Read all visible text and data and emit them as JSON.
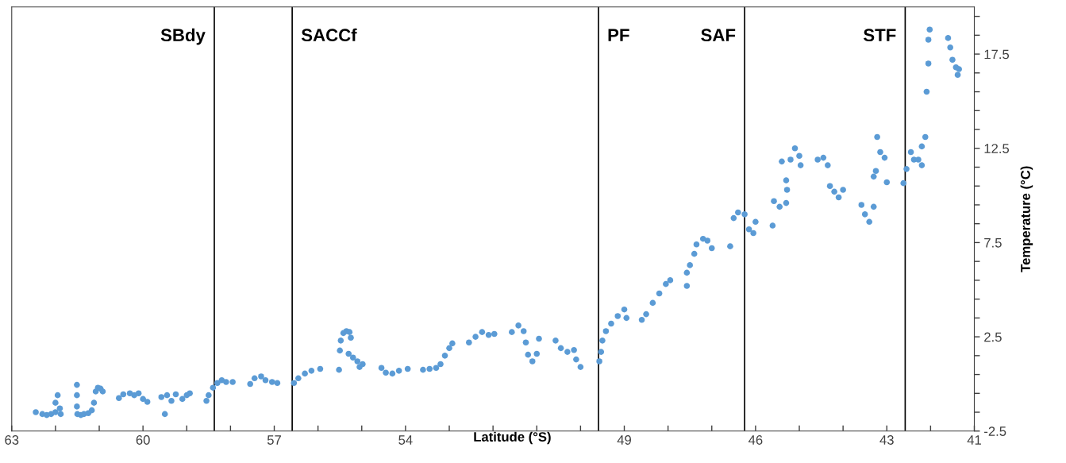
{
  "chart_data": {
    "type": "scatter",
    "xlabel": "Latitude (°S)",
    "ylabel": "Temperature (°C)",
    "xlim": [
      63,
      41
    ],
    "ylim": [
      -2.5,
      20
    ],
    "xticks": [
      63,
      {
        "value": 62,
        "label": null
      },
      {
        "value": 61,
        "label": null
      },
      60,
      {
        "value": 59,
        "label": null
      },
      {
        "value": 58,
        "label": null
      },
      57,
      {
        "value": 56,
        "label": null
      },
      {
        "value": 55,
        "label": null
      },
      54,
      {
        "value": 53,
        "label": null
      },
      {
        "value": 52,
        "label": null
      },
      {
        "value": 51,
        "label": null
      },
      {
        "value": 50,
        "label": null
      },
      49,
      {
        "value": 48,
        "label": null
      },
      {
        "value": 47,
        "label": null
      },
      46,
      {
        "value": 45,
        "label": null
      },
      {
        "value": 44,
        "label": null
      },
      43,
      {
        "value": 42,
        "label": null
      },
      41
    ],
    "yticks": [
      -2.5,
      {
        "value": -1.5,
        "label": null
      },
      {
        "value": -0.5,
        "label": null
      },
      {
        "value": 0.5,
        "label": null
      },
      {
        "value": 1.5,
        "label": null
      },
      2.5,
      {
        "value": 3.5,
        "label": null
      },
      {
        "value": 4.5,
        "label": null
      },
      {
        "value": 5.5,
        "label": null
      },
      {
        "value": 6.5,
        "label": null
      },
      7.5,
      {
        "value": 8.5,
        "label": null
      },
      {
        "value": 9.5,
        "label": null
      },
      {
        "value": 10.5,
        "label": null
      },
      {
        "value": 11.5,
        "label": null
      },
      12.5,
      {
        "value": 13.5,
        "label": null
      },
      {
        "value": 14.5,
        "label": null
      },
      {
        "value": 15.5,
        "label": null
      },
      {
        "value": 16.5,
        "label": null
      },
      17.5,
      {
        "value": 18.5,
        "label": null
      },
      {
        "value": 19.5,
        "label": null
      }
    ],
    "grid": false,
    "marker": "circle",
    "ref_lines": [
      {
        "axis": "x",
        "value": 58.37,
        "label": "SBdy",
        "color": "#000000"
      },
      {
        "axis": "x",
        "value": 56.59,
        "label": "SACCf",
        "color": "#000000"
      },
      {
        "axis": "x",
        "value": 49.59,
        "label": "PF",
        "color": "#000000"
      },
      {
        "axis": "x",
        "value": 46.25,
        "label": "SAF",
        "color": "#000000"
      },
      {
        "axis": "x",
        "value": 42.58,
        "label": "STF",
        "color": "#000000"
      }
    ],
    "series": [
      {
        "color": "#5b9bd5",
        "x": [
          62.45,
          62.3,
          62.2,
          62.1,
          62.0,
          62.0,
          61.95,
          61.9,
          61.88,
          61.51,
          61.51,
          61.51,
          61.5,
          61.42,
          61.35,
          61.25,
          61.17,
          61.12,
          61.08,
          61.03,
          60.97,
          60.92,
          60.55,
          60.45,
          60.3,
          60.2,
          60.1,
          60.0,
          59.9,
          59.58,
          59.5,
          59.45,
          59.35,
          59.25,
          59.1,
          59.0,
          58.93,
          58.55,
          58.5,
          58.4,
          58.3,
          58.2,
          58.1,
          57.95,
          57.55,
          57.45,
          57.3,
          57.2,
          57.05,
          56.93,
          56.55,
          56.45,
          56.3,
          56.15,
          55.95,
          55.52,
          55.5,
          55.48,
          55.42,
          55.35,
          55.28,
          55.25,
          55.3,
          55.2,
          55.1,
          55.05,
          54.98,
          54.55,
          54.45,
          54.3,
          54.15,
          53.95,
          53.6,
          53.45,
          53.3,
          53.2,
          53.1,
          53.0,
          52.93,
          52.55,
          52.4,
          52.25,
          52.1,
          51.97,
          51.57,
          51.42,
          51.3,
          51.25,
          51.2,
          51.1,
          51.0,
          50.95,
          50.57,
          50.45,
          50.3,
          50.15,
          50.1,
          50.0,
          49.57,
          49.53,
          49.5,
          49.42,
          49.3,
          49.15,
          49.0,
          48.95,
          48.6,
          48.5,
          48.35,
          48.2,
          48.05,
          47.95,
          47.57,
          47.57,
          47.5,
          47.4,
          47.35,
          47.2,
          47.1,
          47.0,
          46.58,
          46.5,
          46.4,
          46.25,
          46.15,
          46.05,
          46.0,
          45.61,
          45.58,
          45.45,
          45.3,
          45.28,
          45.3,
          45.4,
          45.2,
          45.1,
          45.0,
          44.97,
          44.58,
          44.45,
          44.35,
          44.3,
          44.2,
          44.1,
          44.0,
          43.58,
          43.5,
          43.4,
          43.3,
          43.3,
          43.25,
          43.22,
          43.15,
          43.05,
          43.0,
          42.62,
          42.55,
          42.45,
          42.38,
          42.28,
          42.2,
          42.2,
          42.12,
          42.09,
          42.05,
          42.05,
          42.02,
          41.6,
          41.55,
          41.5,
          41.42,
          41.38,
          41.35
        ],
        "values": [
          -1.5,
          -1.6,
          -1.65,
          -1.6,
          -1.5,
          -1.0,
          -0.6,
          -1.3,
          -1.6,
          -0.05,
          -0.6,
          -1.2,
          -1.6,
          -1.65,
          -1.6,
          -1.55,
          -1.4,
          -1.0,
          -0.4,
          -0.2,
          -0.25,
          -0.4,
          -0.75,
          -0.55,
          -0.5,
          -0.6,
          -0.5,
          -0.8,
          -0.95,
          -0.7,
          -1.6,
          -0.6,
          -0.9,
          -0.55,
          -0.8,
          -0.6,
          -0.5,
          -0.9,
          -0.6,
          -0.2,
          0.05,
          0.2,
          0.1,
          0.1,
          0.0,
          0.3,
          0.4,
          0.2,
          0.1,
          0.05,
          0.05,
          0.3,
          0.55,
          0.7,
          0.8,
          0.75,
          1.77,
          2.3,
          2.7,
          2.8,
          2.75,
          2.45,
          1.6,
          1.4,
          1.2,
          0.9,
          1.05,
          0.85,
          0.6,
          0.55,
          0.7,
          0.8,
          0.75,
          0.8,
          0.85,
          1.05,
          1.5,
          1.9,
          2.15,
          2.2,
          2.5,
          2.75,
          2.6,
          2.65,
          2.75,
          3.1,
          2.8,
          2.2,
          1.55,
          1.2,
          1.6,
          2.4,
          2.3,
          1.9,
          1.7,
          1.8,
          1.3,
          0.9,
          1.2,
          1.7,
          2.3,
          2.8,
          3.2,
          3.6,
          3.95,
          3.5,
          3.4,
          3.7,
          4.3,
          4.8,
          5.3,
          5.5,
          5.2,
          5.9,
          6.3,
          6.9,
          7.4,
          7.7,
          7.6,
          7.2,
          7.3,
          8.8,
          9.1,
          9.0,
          8.2,
          8.0,
          8.6,
          8.4,
          9.7,
          9.4,
          9.6,
          10.3,
          10.8,
          11.8,
          11.9,
          12.5,
          12.1,
          11.6,
          11.9,
          12.0,
          11.6,
          10.5,
          10.2,
          9.9,
          10.3,
          9.5,
          9.0,
          8.6,
          9.4,
          11.0,
          11.3,
          13.1,
          12.3,
          12.0,
          10.7,
          10.65,
          11.4,
          12.3,
          11.9,
          11.9,
          11.6,
          12.6,
          13.1,
          15.5,
          17.0,
          18.26,
          18.8,
          18.35,
          17.85,
          17.2,
          16.8,
          16.4,
          16.7
        ]
      }
    ]
  }
}
